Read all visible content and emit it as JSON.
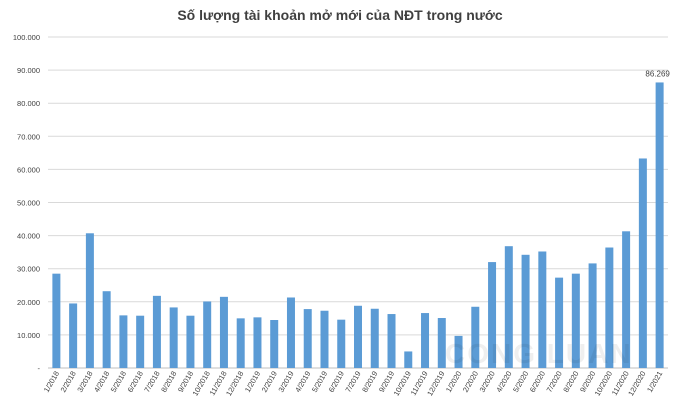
{
  "chart_data": {
    "type": "bar",
    "title": "Số lượng tài khoản mở mới của NĐT trong nước",
    "xlabel": "",
    "ylabel": "",
    "ylim": [
      0,
      100000
    ],
    "yticks": [
      0,
      10000,
      20000,
      30000,
      40000,
      50000,
      60000,
      70000,
      80000,
      90000,
      100000
    ],
    "ytick_labels": [
      "-",
      "10.000",
      "20.000",
      "30.000",
      "40.000",
      "50.000",
      "60.000",
      "70.000",
      "80.000",
      "90.000",
      "100.000"
    ],
    "grid": true,
    "legend": "none",
    "bar_color": "#5b9bd5",
    "categories": [
      "1/2018",
      "2/2018",
      "3/2018",
      "4/2018",
      "5/2018",
      "6/2018",
      "7/2018",
      "8/2018",
      "9/2018",
      "10/2018",
      "11/2018",
      "12/2018",
      "1/2019",
      "2/2019",
      "3/2019",
      "4/2019",
      "5/2019",
      "6/2019",
      "7/2019",
      "8/2019",
      "9/2019",
      "10/2019",
      "11/2019",
      "12/2019",
      "1/2020",
      "2/2020",
      "3/2020",
      "4/2020",
      "5/2020",
      "6/2020",
      "7/2020",
      "8/2020",
      "9/2020",
      "10/2020",
      "11/2020",
      "12/2020",
      "1/2021"
    ],
    "values": [
      28500,
      19500,
      40700,
      23200,
      15900,
      15800,
      21800,
      18300,
      15800,
      20100,
      21500,
      15000,
      15300,
      14500,
      21300,
      17800,
      17300,
      14600,
      18800,
      17900,
      16300,
      5000,
      16600,
      15100,
      9700,
      18500,
      32000,
      36800,
      34200,
      35200,
      27300,
      28500,
      31600,
      36400,
      41300,
      63300,
      86269
    ],
    "annotations": [
      {
        "category": "1/2021",
        "label": "86.269"
      }
    ]
  }
}
